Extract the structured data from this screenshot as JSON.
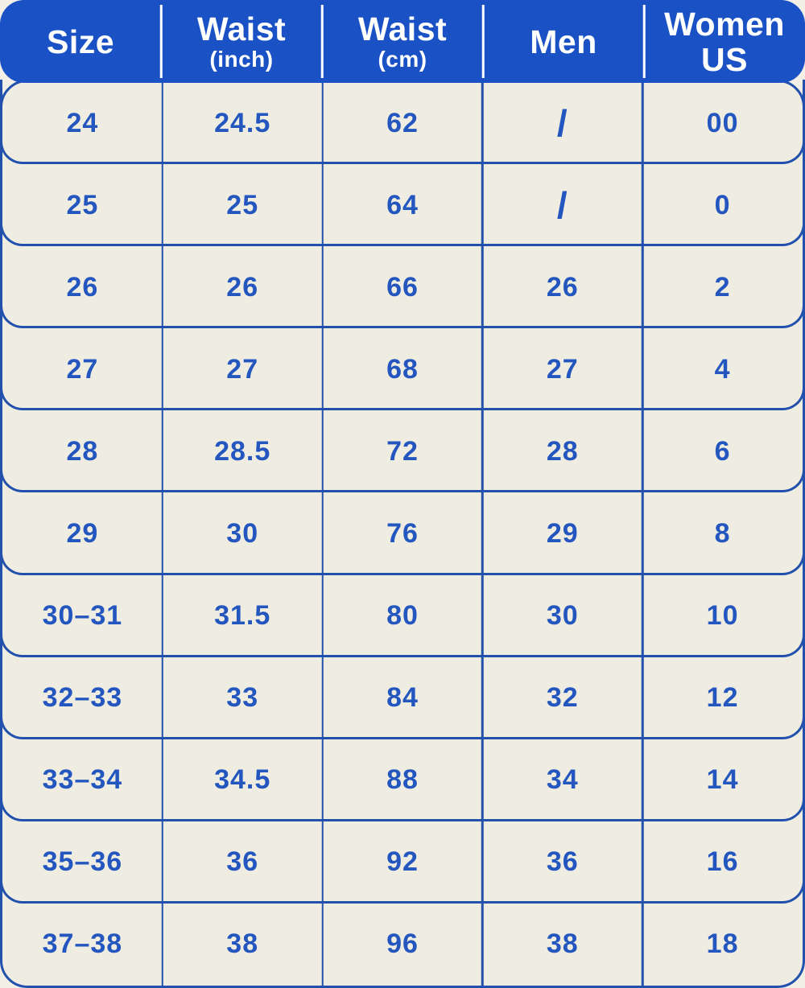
{
  "colors": {
    "header_bg": "#1A52C6",
    "header_text": "#FFFFFF",
    "line": "#2150AD",
    "cell_text": "#2356BE",
    "cell_bg": "#EFECE1",
    "page_bg": "#F2EFE7"
  },
  "chart_data": {
    "type": "table",
    "columns": [
      {
        "label": "Size",
        "sub": ""
      },
      {
        "label": "Waist",
        "sub": "(inch)"
      },
      {
        "label": "Waist",
        "sub": "(cm)"
      },
      {
        "label": "Men",
        "sub": ""
      },
      {
        "label": "Women",
        "sub": "US"
      }
    ],
    "rows": [
      [
        "24",
        "24.5",
        "62",
        "/",
        "00"
      ],
      [
        "25",
        "25",
        "64",
        "/",
        "0"
      ],
      [
        "26",
        "26",
        "66",
        "26",
        "2"
      ],
      [
        "27",
        "27",
        "68",
        "27",
        "4"
      ],
      [
        "28",
        "28.5",
        "72",
        "28",
        "6"
      ],
      [
        "29",
        "30",
        "76",
        "29",
        "8"
      ],
      [
        "30–31",
        "31.5",
        "80",
        "30",
        "10"
      ],
      [
        "32–33",
        "33",
        "84",
        "32",
        "12"
      ],
      [
        "33–34",
        "34.5",
        "88",
        "34",
        "14"
      ],
      [
        "35–36",
        "36",
        "92",
        "36",
        "16"
      ],
      [
        "37–38",
        "38",
        "96",
        "38",
        "18"
      ]
    ]
  }
}
